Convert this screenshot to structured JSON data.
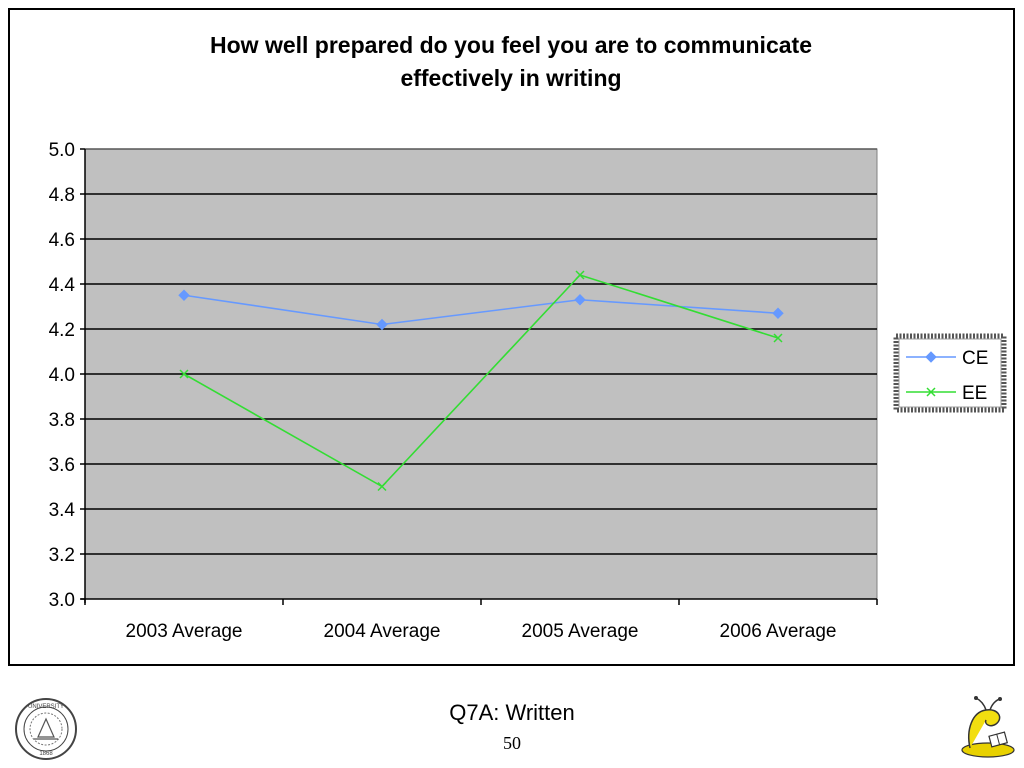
{
  "slide": {
    "caption": "Q7A: Written",
    "page_number": "50",
    "logo_text": "THE UNIVERSITY OF CALIFORNIA · 1868 ·"
  },
  "chart_data": {
    "type": "line",
    "title_lines": [
      "How well prepared do you feel you are to communicate",
      "effectively in writing"
    ],
    "categories": [
      "2003 Average",
      "2004 Average",
      "2005 Average",
      "2006 Average"
    ],
    "y_ticks": [
      "3.0",
      "3.2",
      "3.4",
      "3.6",
      "3.8",
      "4.0",
      "4.2",
      "4.4",
      "4.6",
      "4.8",
      "5.0"
    ],
    "ylim": [
      3.0,
      5.0
    ],
    "grid": true,
    "plot_background": "#c0c0c0",
    "legend_position": "right",
    "series": [
      {
        "name": "CE",
        "values": [
          4.35,
          4.22,
          4.33,
          4.27
        ],
        "color": "#6699ff",
        "marker": "diamond"
      },
      {
        "name": "EE",
        "values": [
          4.0,
          3.5,
          4.44,
          4.16
        ],
        "color": "#33dd33",
        "marker": "x"
      }
    ]
  }
}
